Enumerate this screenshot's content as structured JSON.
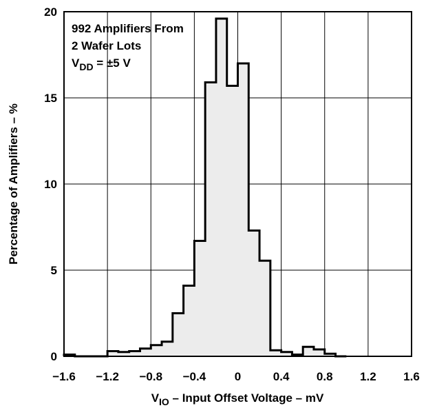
{
  "chart_data": {
    "type": "histogram",
    "x_axis": {
      "label_sym": "V",
      "label_sub": "IO",
      "label_rest": " – Input Offset Voltage – mV",
      "range": [
        -1.6,
        1.6
      ],
      "ticks": [
        -1.6,
        -1.2,
        -0.8,
        -0.4,
        0,
        0.4,
        0.8,
        1.2,
        1.6
      ],
      "tick_labels": [
        "−1.6",
        "−1.2",
        "−0.8",
        "−0.4",
        "0",
        "0.4",
        "0.8",
        "1.2",
        "1.6"
      ]
    },
    "y_axis": {
      "label": "Percentage of Amplifiers – %",
      "range": [
        0,
        20
      ],
      "ticks": [
        0,
        5,
        10,
        15,
        20
      ],
      "tick_labels": [
        "0",
        "5",
        "10",
        "15",
        "20"
      ]
    },
    "grid": true,
    "annotation": {
      "line1": "992 Amplifiers From",
      "line2": "2 Wafer Lots",
      "line3_sym": "V",
      "line3_sub": "DD",
      "line3_rest": " = ±5 V"
    },
    "bin_width": 0.1,
    "bins": [
      {
        "x0": -1.6,
        "value": 0.1
      },
      {
        "x0": -1.5,
        "value": 0.0
      },
      {
        "x0": -1.4,
        "value": 0.0
      },
      {
        "x0": -1.3,
        "value": 0.0
      },
      {
        "x0": -1.2,
        "value": 0.3
      },
      {
        "x0": -1.1,
        "value": 0.25
      },
      {
        "x0": -1.0,
        "value": 0.3
      },
      {
        "x0": -0.9,
        "value": 0.45
      },
      {
        "x0": -0.8,
        "value": 0.65
      },
      {
        "x0": -0.7,
        "value": 0.85
      },
      {
        "x0": -0.6,
        "value": 2.5
      },
      {
        "x0": -0.5,
        "value": 4.1
      },
      {
        "x0": -0.4,
        "value": 6.7
      },
      {
        "x0": -0.3,
        "value": 15.9
      },
      {
        "x0": -0.2,
        "value": 19.6
      },
      {
        "x0": -0.1,
        "value": 15.7
      },
      {
        "x0": 0.0,
        "value": 17.0
      },
      {
        "x0": 0.1,
        "value": 7.3
      },
      {
        "x0": 0.2,
        "value": 5.55
      },
      {
        "x0": 0.3,
        "value": 0.35
      },
      {
        "x0": 0.4,
        "value": 0.25
      },
      {
        "x0": 0.5,
        "value": 0.1
      },
      {
        "x0": 0.6,
        "value": 0.55
      },
      {
        "x0": 0.7,
        "value": 0.4
      },
      {
        "x0": 0.8,
        "value": 0.15
      },
      {
        "x0": 0.9,
        "value": 0.0
      }
    ],
    "fill_color": "#ececec",
    "stroke_color": "#000000"
  }
}
